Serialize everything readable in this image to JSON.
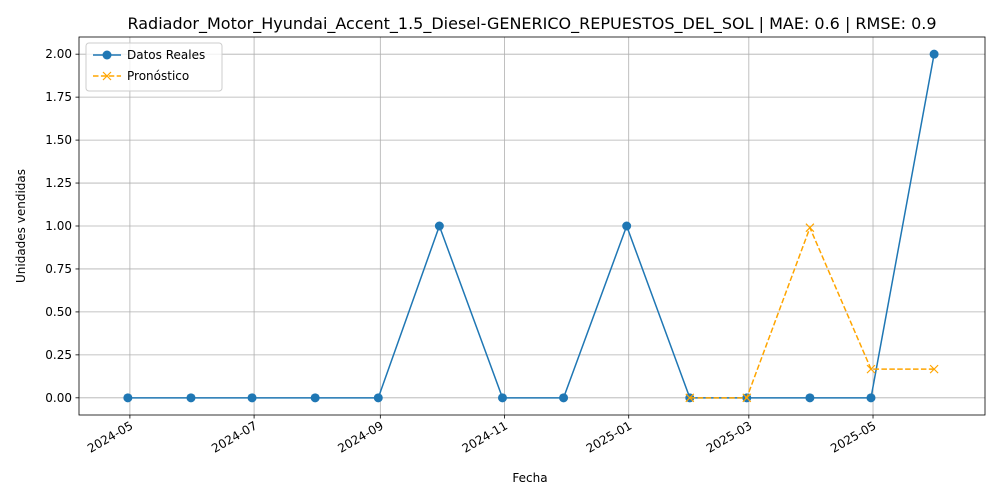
{
  "chart_data": {
    "type": "line",
    "title": "Radiador_Motor_Hyundai_Accent_1.5_Diesel-GENERICO_REPUESTOS_DEL_SOL | MAE: 0.6 | RMSE: 0.9",
    "xlabel": "Fecha",
    "ylabel": "Unidades vendidas",
    "ylim": [
      -0.1,
      2.1
    ],
    "xlim": [
      "2024-04-06",
      "2025-06-25"
    ],
    "grid": true,
    "legend_position": "top-left",
    "x_ticks": [
      "2024-05-01",
      "2024-07-01",
      "2024-09-01",
      "2024-11-01",
      "2025-01-01",
      "2025-03-01",
      "2025-05-01"
    ],
    "x_tick_labels": [
      "2024-05",
      "2024-07",
      "2024-09",
      "2024-11",
      "2025-01",
      "2025-03",
      "2025-05"
    ],
    "y_ticks": [
      0.0,
      0.25,
      0.5,
      0.75,
      1.0,
      1.25,
      1.5,
      1.75,
      2.0
    ],
    "y_tick_labels": [
      "0.00",
      "0.25",
      "0.50",
      "0.75",
      "1.00",
      "1.25",
      "1.50",
      "1.75",
      "2.00"
    ],
    "series": [
      {
        "name": "Datos Reales",
        "color": "#1f77b4",
        "style": "solid",
        "marker": "circle",
        "x": [
          "2024-04-30",
          "2024-05-31",
          "2024-06-30",
          "2024-07-31",
          "2024-08-31",
          "2024-09-30",
          "2024-10-31",
          "2024-11-30",
          "2024-12-31",
          "2025-01-31",
          "2025-02-28",
          "2025-03-31",
          "2025-04-30",
          "2025-05-31"
        ],
        "values": [
          0,
          0,
          0,
          0,
          0,
          1,
          0,
          0,
          1,
          0,
          0,
          0,
          0,
          2
        ]
      },
      {
        "name": "Pronóstico",
        "color": "#ffa500",
        "style": "dashed",
        "marker": "x",
        "x": [
          "2025-01-31",
          "2025-02-28",
          "2025-03-31",
          "2025-04-30",
          "2025-05-31"
        ],
        "values": [
          0,
          0,
          0.99,
          0.167,
          0.167
        ]
      }
    ]
  }
}
